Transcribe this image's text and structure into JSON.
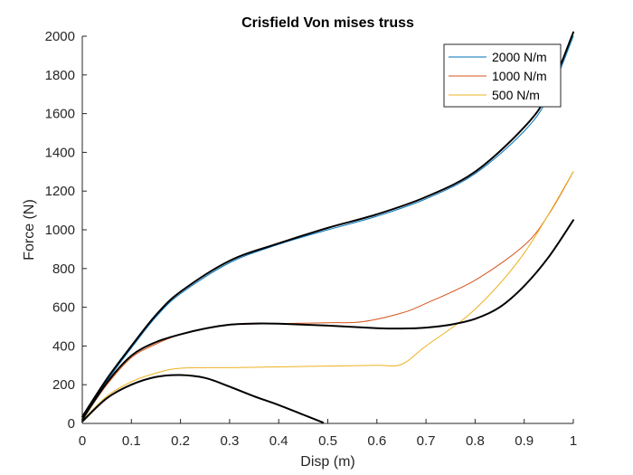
{
  "chart_data": {
    "type": "line",
    "title": "Crisfield Von mises truss",
    "xlabel": "Disp (m)",
    "ylabel": "Force (N)",
    "xlim": [
      0,
      1
    ],
    "ylim": [
      0,
      2000
    ],
    "xticks": [
      0,
      0.1,
      0.2,
      0.3,
      0.4,
      0.5,
      0.6,
      0.7,
      0.8,
      0.9,
      1
    ],
    "xtick_labels": [
      "0",
      "0.1",
      "0.2",
      "0.3",
      "0.4",
      "0.5",
      "0.6",
      "0.7",
      "0.8",
      "0.9",
      "1"
    ],
    "yticks": [
      0,
      200,
      400,
      600,
      800,
      1000,
      1200,
      1400,
      1600,
      1800,
      2000
    ],
    "ytick_labels": [
      "0",
      "200",
      "400",
      "600",
      "800",
      "1000",
      "1200",
      "1400",
      "1600",
      "1800",
      "2000"
    ],
    "grid": false,
    "legend_position": "top-right",
    "series": [
      {
        "name": "2000 N/m",
        "color": "#0072bd",
        "x": [
          0,
          0.05,
          0.1,
          0.15,
          0.2,
          0.3,
          0.4,
          0.5,
          0.6,
          0.7,
          0.8,
          0.9,
          0.95,
          1.0
        ],
        "y": [
          30,
          220,
          390,
          550,
          670,
          830,
          925,
          1000,
          1070,
          1160,
          1290,
          1510,
          1690,
          2000
        ]
      },
      {
        "name": "1000 N/m",
        "color": "#d95319",
        "x": [
          0,
          0.05,
          0.1,
          0.15,
          0.2,
          0.25,
          0.3,
          0.4,
          0.5,
          0.57,
          0.65,
          0.7,
          0.8,
          0.9,
          0.95,
          1.0
        ],
        "y": [
          20,
          200,
          340,
          410,
          460,
          490,
          510,
          515,
          520,
          525,
          570,
          620,
          740,
          920,
          1080,
          1300
        ]
      },
      {
        "name": "500 N/m",
        "color": "#edb120",
        "x": [
          0,
          0.05,
          0.1,
          0.15,
          0.2,
          0.3,
          0.4,
          0.5,
          0.6,
          0.65,
          0.7,
          0.8,
          0.9,
          1.0
        ],
        "y": [
          15,
          140,
          215,
          260,
          285,
          288,
          292,
          296,
          300,
          305,
          400,
          590,
          880,
          1300
        ]
      },
      {
        "name": "",
        "color": "#000000",
        "x": [
          0,
          0.05,
          0.1,
          0.15,
          0.2,
          0.3,
          0.4,
          0.5,
          0.6,
          0.7,
          0.8,
          0.9,
          0.95,
          1.0
        ],
        "y": [
          35,
          230,
          400,
          560,
          680,
          840,
          930,
          1010,
          1080,
          1170,
          1300,
          1530,
          1710,
          2020
        ]
      },
      {
        "name": "",
        "color": "#000000",
        "x": [
          0,
          0.05,
          0.1,
          0.15,
          0.2,
          0.25,
          0.3,
          0.35,
          0.4,
          0.5,
          0.6,
          0.65,
          0.7,
          0.75,
          0.8,
          0.85,
          0.9,
          0.95,
          1.0
        ],
        "y": [
          20,
          210,
          350,
          420,
          460,
          490,
          510,
          516,
          515,
          505,
          492,
          490,
          495,
          510,
          540,
          600,
          710,
          860,
          1050
        ]
      },
      {
        "name": "",
        "color": "#000000",
        "x": [
          0,
          0.05,
          0.1,
          0.15,
          0.2,
          0.25,
          0.3,
          0.35,
          0.4,
          0.45,
          0.49
        ],
        "y": [
          10,
          130,
          200,
          240,
          250,
          235,
          190,
          140,
          95,
          45,
          5
        ]
      }
    ]
  }
}
